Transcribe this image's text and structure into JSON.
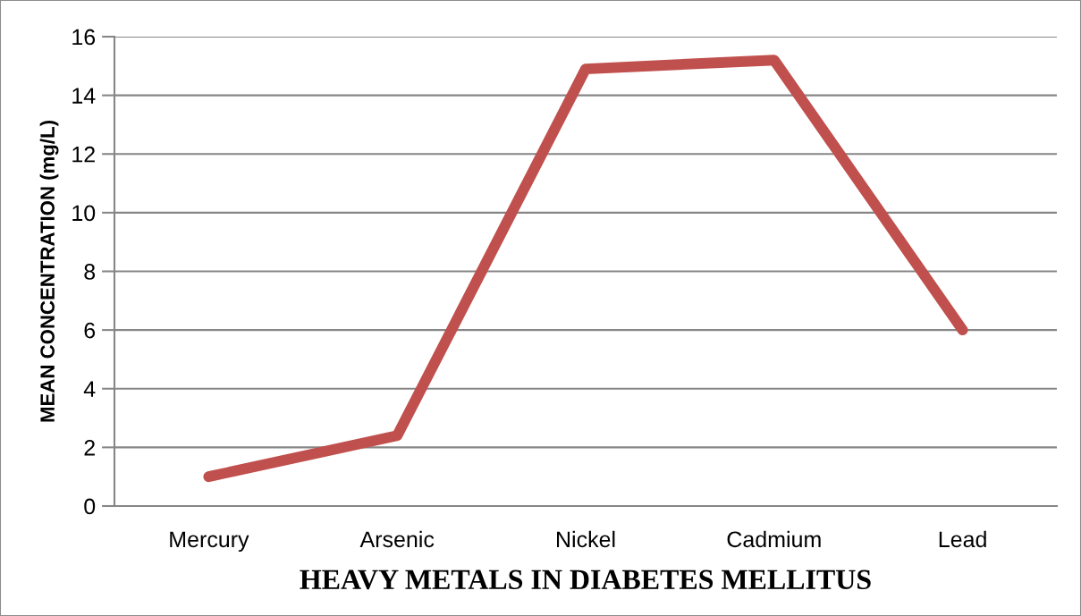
{
  "chart_data": {
    "type": "line",
    "xlabel": "HEAVY METALS IN DIABETES MELLITUS",
    "ylabel": "MEAN CONCENTRATION (mg/L)",
    "categories": [
      "Mercury",
      "Arsenic",
      "Nickel",
      "Cadmium",
      "Lead"
    ],
    "series": [
      {
        "color": "#c0504d",
        "values": [
          1.0,
          2.4,
          14.9,
          15.2,
          6.0
        ]
      }
    ],
    "ylim": [
      0,
      16
    ],
    "yticks": [
      0,
      2,
      4,
      6,
      8,
      10,
      12,
      14,
      16
    ],
    "grid": "y",
    "line_style": "solid"
  }
}
